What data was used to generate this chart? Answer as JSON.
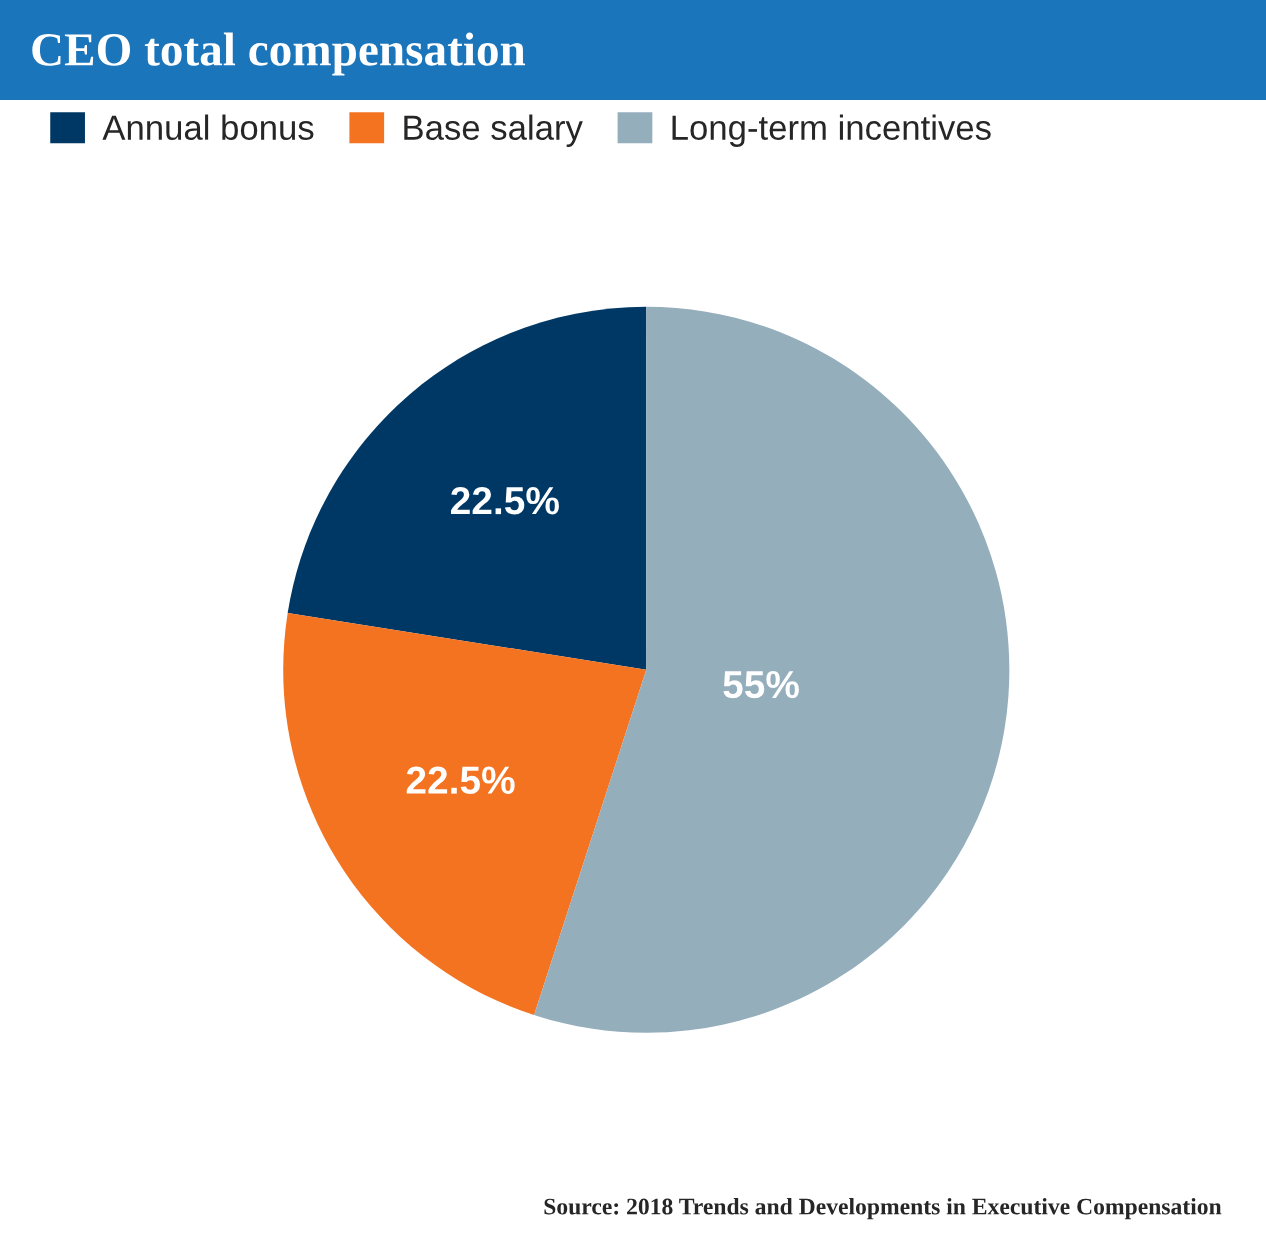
{
  "chart_data": {
    "type": "pie",
    "title": "CEO total compensation",
    "categories": [
      "Annual bonus",
      "Base salary",
      "Long-term incentives"
    ],
    "values": [
      22.5,
      22.5,
      55
    ],
    "colors": [
      "#003865",
      "#f47321",
      "#94aebc"
    ],
    "value_labels": [
      "22.5%",
      "22.5%",
      "55%"
    ],
    "legend": "top left",
    "annotations": [
      "Source: 2018 Trends and Developments in Executive Compensation"
    ]
  }
}
